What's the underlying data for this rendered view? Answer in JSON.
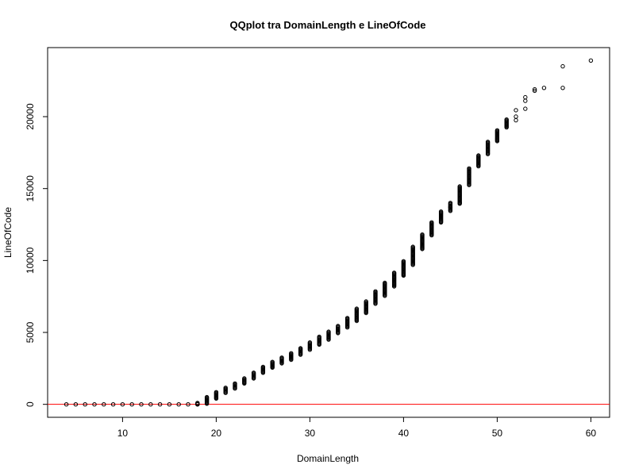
{
  "chart_data": {
    "type": "scatter",
    "title": "QQplot tra DomainLength e LineOfCode",
    "xlabel": "DomainLength",
    "ylabel": "LineOfCode",
    "xlim": [
      2,
      62
    ],
    "ylim": [
      -900,
      24800
    ],
    "xticks": [
      10,
      20,
      30,
      40,
      50,
      60
    ],
    "yticks": [
      0,
      5000,
      10000,
      15000,
      20000
    ],
    "grid": false,
    "legend": "none",
    "point_color": "#000000",
    "line_color": "#ff0000",
    "reference_line": {
      "x": [
        2,
        62
      ],
      "y": [
        0,
        0
      ]
    },
    "zero_points_x": [
      4,
      5,
      6,
      7,
      8,
      9,
      10,
      11,
      12,
      13,
      14,
      15,
      16,
      17,
      18
    ],
    "column_ranges": [
      {
        "x": 18,
        "y_min": 0,
        "y_max": 100
      },
      {
        "x": 19,
        "y_min": 50,
        "y_max": 500
      },
      {
        "x": 20,
        "y_min": 400,
        "y_max": 850
      },
      {
        "x": 21,
        "y_min": 800,
        "y_max": 1150
      },
      {
        "x": 22,
        "y_min": 1100,
        "y_max": 1450
      },
      {
        "x": 23,
        "y_min": 1450,
        "y_max": 1800
      },
      {
        "x": 24,
        "y_min": 1800,
        "y_max": 2200
      },
      {
        "x": 25,
        "y_min": 2200,
        "y_max": 2600
      },
      {
        "x": 26,
        "y_min": 2550,
        "y_max": 2950
      },
      {
        "x": 27,
        "y_min": 2850,
        "y_max": 3250
      },
      {
        "x": 28,
        "y_min": 3100,
        "y_max": 3550
      },
      {
        "x": 29,
        "y_min": 3450,
        "y_max": 3900
      },
      {
        "x": 30,
        "y_min": 3800,
        "y_max": 4300
      },
      {
        "x": 31,
        "y_min": 4150,
        "y_max": 4700
      },
      {
        "x": 32,
        "y_min": 4500,
        "y_max": 5050
      },
      {
        "x": 33,
        "y_min": 4950,
        "y_max": 5450
      },
      {
        "x": 34,
        "y_min": 5350,
        "y_max": 6000
      },
      {
        "x": 35,
        "y_min": 5800,
        "y_max": 6650
      },
      {
        "x": 36,
        "y_min": 6350,
        "y_max": 7150
      },
      {
        "x": 37,
        "y_min": 7000,
        "y_max": 7850
      },
      {
        "x": 38,
        "y_min": 7550,
        "y_max": 8450
      },
      {
        "x": 39,
        "y_min": 8200,
        "y_max": 9150
      },
      {
        "x": 40,
        "y_min": 8950,
        "y_max": 9950
      },
      {
        "x": 41,
        "y_min": 9700,
        "y_max": 10950
      },
      {
        "x": 42,
        "y_min": 10800,
        "y_max": 11800
      },
      {
        "x": 43,
        "y_min": 11750,
        "y_max": 12650
      },
      {
        "x": 44,
        "y_min": 12650,
        "y_max": 13400
      },
      {
        "x": 45,
        "y_min": 13450,
        "y_max": 14000
      },
      {
        "x": 46,
        "y_min": 13950,
        "y_max": 15150
      },
      {
        "x": 47,
        "y_min": 15250,
        "y_max": 16400
      },
      {
        "x": 48,
        "y_min": 16550,
        "y_max": 17300
      },
      {
        "x": 49,
        "y_min": 17400,
        "y_max": 18250
      },
      {
        "x": 50,
        "y_min": 18300,
        "y_max": 19050
      },
      {
        "x": 51,
        "y_min": 19250,
        "y_max": 19800
      }
    ],
    "sparse_points": [
      {
        "x": 45,
        "y": 13700
      },
      {
        "x": 46,
        "y": 14000
      },
      {
        "x": 52,
        "y": 19750
      },
      {
        "x": 52,
        "y": 20000
      },
      {
        "x": 52,
        "y": 20450
      },
      {
        "x": 53,
        "y": 20550
      },
      {
        "x": 53,
        "y": 21100
      },
      {
        "x": 53,
        "y": 21350
      },
      {
        "x": 54,
        "y": 21800
      },
      {
        "x": 54,
        "y": 21900
      },
      {
        "x": 55,
        "y": 22000
      },
      {
        "x": 57,
        "y": 22000
      },
      {
        "x": 57,
        "y": 23500
      },
      {
        "x": 60,
        "y": 23900
      }
    ]
  }
}
